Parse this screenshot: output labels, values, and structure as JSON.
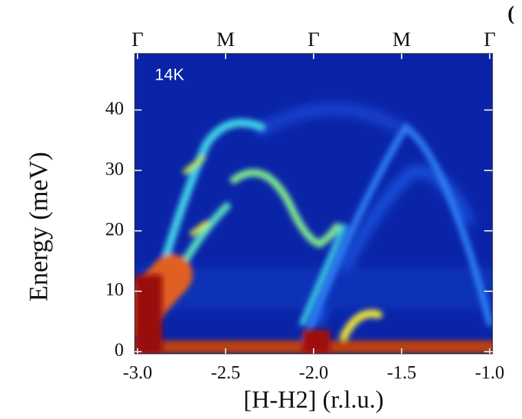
{
  "chart_data": {
    "type": "heatmap",
    "annotation": "14K",
    "panel_label": "(",
    "xlabel": "[H-H2] (r.l.u.)",
    "ylabel": "Energy (meV)",
    "xlim": [
      -3.0,
      -1.0
    ],
    "ylim": [
      0,
      49
    ],
    "xticks": [
      {
        "value": -3.0,
        "label": "-3.0"
      },
      -2.5,
      {
        "value": -2.0,
        "label": "-2.0"
      },
      -1.5,
      {
        "value": -1.0,
        "label": "-1.0"
      }
    ],
    "yticks": [
      0,
      10,
      20,
      30,
      40
    ],
    "top_ticks": [
      {
        "value": -3.0,
        "label": "Γ"
      },
      {
        "value": -2.5,
        "label": "M"
      },
      {
        "value": -2.0,
        "label": "Γ"
      },
      {
        "value": -1.5,
        "label": "M"
      },
      {
        "value": -1.0,
        "label": "Γ"
      }
    ]
  }
}
